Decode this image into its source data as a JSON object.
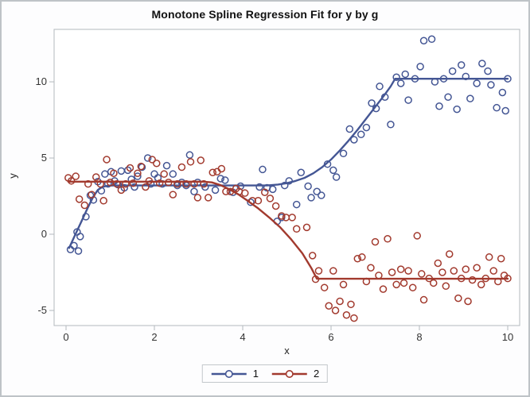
{
  "title": "Monotone Spline Regression Fit for y by g",
  "axes": {
    "x_label": "x",
    "y_label": "y",
    "x_ticks": [
      0,
      2,
      4,
      6,
      8,
      10
    ],
    "y_ticks": [
      -5,
      0,
      5,
      10
    ]
  },
  "legend": {
    "items": [
      {
        "label": "1",
        "color": "#445694"
      },
      {
        "label": "2",
        "color": "#A23A2E"
      }
    ]
  },
  "colors": {
    "group1": "#445694",
    "group2": "#A23A2E",
    "plot_border": "#b3b9bd",
    "tick": "#b3b9bd",
    "tick_label": "#333333",
    "background": "#fdfdfe"
  },
  "chart_data": {
    "type": "scatter",
    "title": "Monotone Spline Regression Fit for y by g",
    "xlabel": "x",
    "ylabel": "y",
    "xlim": [
      -0.27,
      10.27
    ],
    "ylim": [
      -5.99,
      13.44
    ],
    "x_ticks": [
      0,
      2,
      4,
      6,
      8,
      10
    ],
    "y_ticks": [
      -5,
      0,
      5,
      10
    ],
    "grid": false,
    "legend_position": "bottom",
    "series": [
      {
        "name": "1",
        "color": "#445694",
        "marker": "open-circle",
        "points": [
          [
            0.1,
            -1.0
          ],
          [
            0.18,
            -0.75
          ],
          [
            0.28,
            -1.1
          ],
          [
            0.25,
            0.15
          ],
          [
            0.32,
            -0.15
          ],
          [
            0.45,
            1.15
          ],
          [
            0.55,
            2.55
          ],
          [
            0.62,
            2.25
          ],
          [
            0.72,
            3.45
          ],
          [
            0.8,
            2.85
          ],
          [
            0.88,
            3.95
          ],
          [
            0.95,
            3.3
          ],
          [
            1.02,
            4.1
          ],
          [
            1.1,
            3.5
          ],
          [
            1.18,
            3.25
          ],
          [
            1.25,
            4.15
          ],
          [
            1.32,
            3.05
          ],
          [
            1.4,
            4.2
          ],
          [
            1.48,
            3.6
          ],
          [
            1.55,
            3.1
          ],
          [
            1.62,
            3.8
          ],
          [
            1.72,
            4.4
          ],
          [
            1.85,
            5.0
          ],
          [
            1.92,
            3.3
          ],
          [
            2.0,
            3.95
          ],
          [
            2.08,
            3.7
          ],
          [
            2.18,
            3.3
          ],
          [
            2.28,
            4.5
          ],
          [
            2.42,
            3.95
          ],
          [
            2.52,
            3.2
          ],
          [
            2.62,
            3.4
          ],
          [
            2.72,
            3.2
          ],
          [
            2.8,
            5.2
          ],
          [
            2.9,
            2.8
          ],
          [
            2.98,
            3.4
          ],
          [
            3.15,
            3.1
          ],
          [
            3.38,
            2.9
          ],
          [
            3.5,
            3.65
          ],
          [
            3.6,
            3.55
          ],
          [
            3.78,
            2.75
          ],
          [
            3.95,
            3.15
          ],
          [
            4.18,
            2.1
          ],
          [
            4.38,
            3.1
          ],
          [
            4.45,
            4.25
          ],
          [
            4.55,
            3.05
          ],
          [
            4.68,
            2.95
          ],
          [
            4.78,
            0.85
          ],
          [
            4.88,
            1.1
          ],
          [
            4.95,
            3.2
          ],
          [
            5.05,
            3.5
          ],
          [
            5.22,
            1.95
          ],
          [
            5.32,
            4.05
          ],
          [
            5.48,
            3.15
          ],
          [
            5.55,
            2.4
          ],
          [
            5.68,
            2.8
          ],
          [
            5.78,
            2.55
          ],
          [
            5.92,
            4.6
          ],
          [
            6.05,
            4.2
          ],
          [
            6.12,
            3.75
          ],
          [
            6.28,
            5.3
          ],
          [
            6.42,
            6.9
          ],
          [
            6.52,
            6.2
          ],
          [
            6.68,
            6.55
          ],
          [
            6.8,
            7.0
          ],
          [
            6.92,
            8.6
          ],
          [
            7.02,
            8.25
          ],
          [
            7.1,
            9.7
          ],
          [
            7.22,
            9.0
          ],
          [
            7.35,
            7.2
          ],
          [
            7.48,
            10.3
          ],
          [
            7.58,
            9.9
          ],
          [
            7.68,
            10.5
          ],
          [
            7.75,
            8.8
          ],
          [
            7.9,
            10.2
          ],
          [
            8.02,
            11.0
          ],
          [
            8.1,
            12.7
          ],
          [
            8.28,
            12.8
          ],
          [
            8.35,
            10.0
          ],
          [
            8.45,
            8.4
          ],
          [
            8.55,
            10.2
          ],
          [
            8.65,
            9.0
          ],
          [
            8.75,
            10.7
          ],
          [
            8.85,
            8.2
          ],
          [
            8.95,
            11.1
          ],
          [
            9.05,
            10.35
          ],
          [
            9.15,
            8.9
          ],
          [
            9.3,
            9.9
          ],
          [
            9.42,
            11.2
          ],
          [
            9.55,
            10.7
          ],
          [
            9.62,
            9.8
          ],
          [
            9.75,
            8.3
          ],
          [
            9.88,
            9.3
          ],
          [
            9.95,
            8.1
          ],
          [
            10.0,
            10.2
          ]
        ],
        "fit_line": [
          [
            0.07,
            -0.9
          ],
          [
            0.2,
            -0.08
          ],
          [
            0.35,
            0.85
          ],
          [
            0.5,
            1.78
          ],
          [
            0.62,
            2.48
          ],
          [
            0.72,
            2.9
          ],
          [
            0.82,
            3.1
          ],
          [
            0.95,
            3.19
          ],
          [
            1.1,
            3.2
          ],
          [
            4.55,
            3.2
          ],
          [
            4.8,
            3.26
          ],
          [
            5.0,
            3.35
          ],
          [
            5.2,
            3.5
          ],
          [
            5.4,
            3.7
          ],
          [
            5.6,
            4.0
          ],
          [
            5.8,
            4.4
          ],
          [
            6.0,
            4.9
          ],
          [
            6.2,
            5.5
          ],
          [
            6.4,
            6.15
          ],
          [
            6.6,
            6.85
          ],
          [
            6.8,
            7.6
          ],
          [
            7.0,
            8.35
          ],
          [
            7.2,
            9.1
          ],
          [
            7.35,
            9.7
          ],
          [
            7.45,
            10.2
          ],
          [
            10.0,
            10.2
          ]
        ]
      },
      {
        "name": "2",
        "color": "#A23A2E",
        "marker": "open-circle",
        "points": [
          [
            0.05,
            3.7
          ],
          [
            0.12,
            3.5
          ],
          [
            0.22,
            3.8
          ],
          [
            0.3,
            2.3
          ],
          [
            0.42,
            1.9
          ],
          [
            0.5,
            3.3
          ],
          [
            0.58,
            2.6
          ],
          [
            0.68,
            3.75
          ],
          [
            0.78,
            3.3
          ],
          [
            0.85,
            2.2
          ],
          [
            0.92,
            4.9
          ],
          [
            1.0,
            3.4
          ],
          [
            1.08,
            4.0
          ],
          [
            1.15,
            3.3
          ],
          [
            1.25,
            2.9
          ],
          [
            1.35,
            3.3
          ],
          [
            1.45,
            4.35
          ],
          [
            1.52,
            3.35
          ],
          [
            1.62,
            4.0
          ],
          [
            1.7,
            4.45
          ],
          [
            1.8,
            3.1
          ],
          [
            1.88,
            3.5
          ],
          [
            1.95,
            4.9
          ],
          [
            2.05,
            4.65
          ],
          [
            2.12,
            3.35
          ],
          [
            2.22,
            3.95
          ],
          [
            2.32,
            3.4
          ],
          [
            2.42,
            2.6
          ],
          [
            2.52,
            3.3
          ],
          [
            2.62,
            4.4
          ],
          [
            2.72,
            3.3
          ],
          [
            2.82,
            4.75
          ],
          [
            2.9,
            3.3
          ],
          [
            2.98,
            2.4
          ],
          [
            3.05,
            4.85
          ],
          [
            3.12,
            3.3
          ],
          [
            3.22,
            2.4
          ],
          [
            3.32,
            4.05
          ],
          [
            3.42,
            4.1
          ],
          [
            3.52,
            4.3
          ],
          [
            3.62,
            2.8
          ],
          [
            3.72,
            2.8
          ],
          [
            3.85,
            3.0
          ],
          [
            3.92,
            2.8
          ],
          [
            4.05,
            2.7
          ],
          [
            4.22,
            2.2
          ],
          [
            4.35,
            2.2
          ],
          [
            4.5,
            2.75
          ],
          [
            4.62,
            2.35
          ],
          [
            4.75,
            1.85
          ],
          [
            4.88,
            1.2
          ],
          [
            4.98,
            1.1
          ],
          [
            5.12,
            1.1
          ],
          [
            5.22,
            0.35
          ],
          [
            5.45,
            0.45
          ],
          [
            5.58,
            -1.4
          ],
          [
            5.65,
            -2.95
          ],
          [
            5.72,
            -2.4
          ],
          [
            5.85,
            -3.5
          ],
          [
            5.95,
            -4.7
          ],
          [
            6.05,
            -2.4
          ],
          [
            6.1,
            -5.0
          ],
          [
            6.2,
            -4.4
          ],
          [
            6.28,
            -3.3
          ],
          [
            6.35,
            -5.3
          ],
          [
            6.45,
            -4.6
          ],
          [
            6.52,
            -5.5
          ],
          [
            6.6,
            -1.6
          ],
          [
            6.7,
            -1.5
          ],
          [
            6.8,
            -3.1
          ],
          [
            6.9,
            -2.2
          ],
          [
            7.0,
            -0.5
          ],
          [
            7.08,
            -2.7
          ],
          [
            7.18,
            -3.6
          ],
          [
            7.28,
            -0.3
          ],
          [
            7.38,
            -2.5
          ],
          [
            7.48,
            -3.3
          ],
          [
            7.58,
            -2.3
          ],
          [
            7.65,
            -3.2
          ],
          [
            7.75,
            -2.4
          ],
          [
            7.85,
            -3.5
          ],
          [
            7.95,
            -0.1
          ],
          [
            8.05,
            -2.6
          ],
          [
            8.1,
            -4.3
          ],
          [
            8.22,
            -2.9
          ],
          [
            8.32,
            -3.2
          ],
          [
            8.42,
            -1.9
          ],
          [
            8.52,
            -2.5
          ],
          [
            8.6,
            -3.4
          ],
          [
            8.68,
            -1.3
          ],
          [
            8.78,
            -2.4
          ],
          [
            8.88,
            -4.2
          ],
          [
            8.95,
            -2.9
          ],
          [
            9.05,
            -2.3
          ],
          [
            9.1,
            -4.4
          ],
          [
            9.2,
            -3.0
          ],
          [
            9.3,
            -2.2
          ],
          [
            9.4,
            -3.3
          ],
          [
            9.5,
            -2.9
          ],
          [
            9.58,
            -1.5
          ],
          [
            9.68,
            -2.4
          ],
          [
            9.78,
            -3.1
          ],
          [
            9.85,
            -1.6
          ],
          [
            9.92,
            -2.7
          ],
          [
            10.0,
            -2.9
          ]
        ],
        "fit_line": [
          [
            0.05,
            3.45
          ],
          [
            3.1,
            3.45
          ],
          [
            3.3,
            3.4
          ],
          [
            3.5,
            3.22
          ],
          [
            3.7,
            2.95
          ],
          [
            3.9,
            2.62
          ],
          [
            4.1,
            2.22
          ],
          [
            4.35,
            1.7
          ],
          [
            4.6,
            1.1
          ],
          [
            4.85,
            0.45
          ],
          [
            5.1,
            -0.35
          ],
          [
            5.35,
            -1.25
          ],
          [
            5.55,
            -2.2
          ],
          [
            5.68,
            -2.92
          ],
          [
            10.0,
            -2.92
          ]
        ]
      }
    ]
  }
}
